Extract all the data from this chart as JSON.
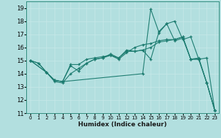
{
  "title": "",
  "xlabel": "Humidex (Indice chaleur)",
  "ylabel": "",
  "bg_color": "#b2dfdf",
  "line_color": "#1a7a6e",
  "xlim": [
    -0.5,
    23.5
  ],
  "ylim": [
    11,
    19.5
  ],
  "xticks": [
    0,
    1,
    2,
    3,
    4,
    5,
    6,
    7,
    8,
    9,
    10,
    11,
    12,
    13,
    14,
    15,
    16,
    17,
    18,
    19,
    20,
    21,
    22,
    23
  ],
  "yticks": [
    11,
    12,
    13,
    14,
    15,
    16,
    17,
    18,
    19
  ],
  "series": [
    {
      "x": [
        0,
        1,
        2,
        3,
        4,
        5,
        6,
        7,
        8,
        9,
        10,
        11,
        12,
        13,
        14,
        15,
        16,
        17,
        18,
        19,
        20,
        21,
        22,
        23
      ],
      "y": [
        15.0,
        14.8,
        14.1,
        13.5,
        13.4,
        14.7,
        14.7,
        15.1,
        15.2,
        15.3,
        15.4,
        15.2,
        15.8,
        15.7,
        15.8,
        16.0,
        16.4,
        16.5,
        16.6,
        16.8,
        15.1,
        15.1,
        13.3,
        11.2
      ]
    },
    {
      "x": [
        0,
        1,
        2,
        3,
        4,
        5,
        6,
        7,
        8,
        9,
        10,
        11,
        12,
        13,
        14,
        15,
        16,
        17,
        18,
        19,
        20,
        21,
        22,
        23
      ],
      "y": [
        15.0,
        14.8,
        14.1,
        13.4,
        13.3,
        14.0,
        14.4,
        14.8,
        15.1,
        15.2,
        15.4,
        15.1,
        15.6,
        16.0,
        16.2,
        16.3,
        16.5,
        16.6,
        16.6,
        16.8,
        15.1,
        15.1,
        13.3,
        11.2
      ]
    },
    {
      "x": [
        0,
        2,
        3,
        4,
        5,
        6,
        7,
        8,
        9,
        10,
        11,
        12,
        13,
        14,
        15,
        16,
        17,
        18,
        19,
        20,
        21,
        22,
        23
      ],
      "y": [
        15.0,
        14.1,
        13.5,
        13.4,
        14.6,
        14.2,
        14.8,
        15.1,
        15.2,
        15.5,
        15.2,
        15.7,
        15.7,
        15.8,
        15.1,
        17.1,
        17.8,
        18.0,
        16.6,
        16.8,
        15.1,
        15.2,
        11.2
      ]
    },
    {
      "x": [
        0,
        2,
        3,
        4,
        14,
        15,
        16,
        17,
        18,
        19,
        20,
        21,
        22,
        23
      ],
      "y": [
        15.0,
        14.1,
        13.5,
        13.4,
        14.0,
        18.9,
        17.2,
        17.8,
        16.5,
        16.7,
        15.1,
        15.2,
        13.3,
        11.2
      ]
    }
  ]
}
